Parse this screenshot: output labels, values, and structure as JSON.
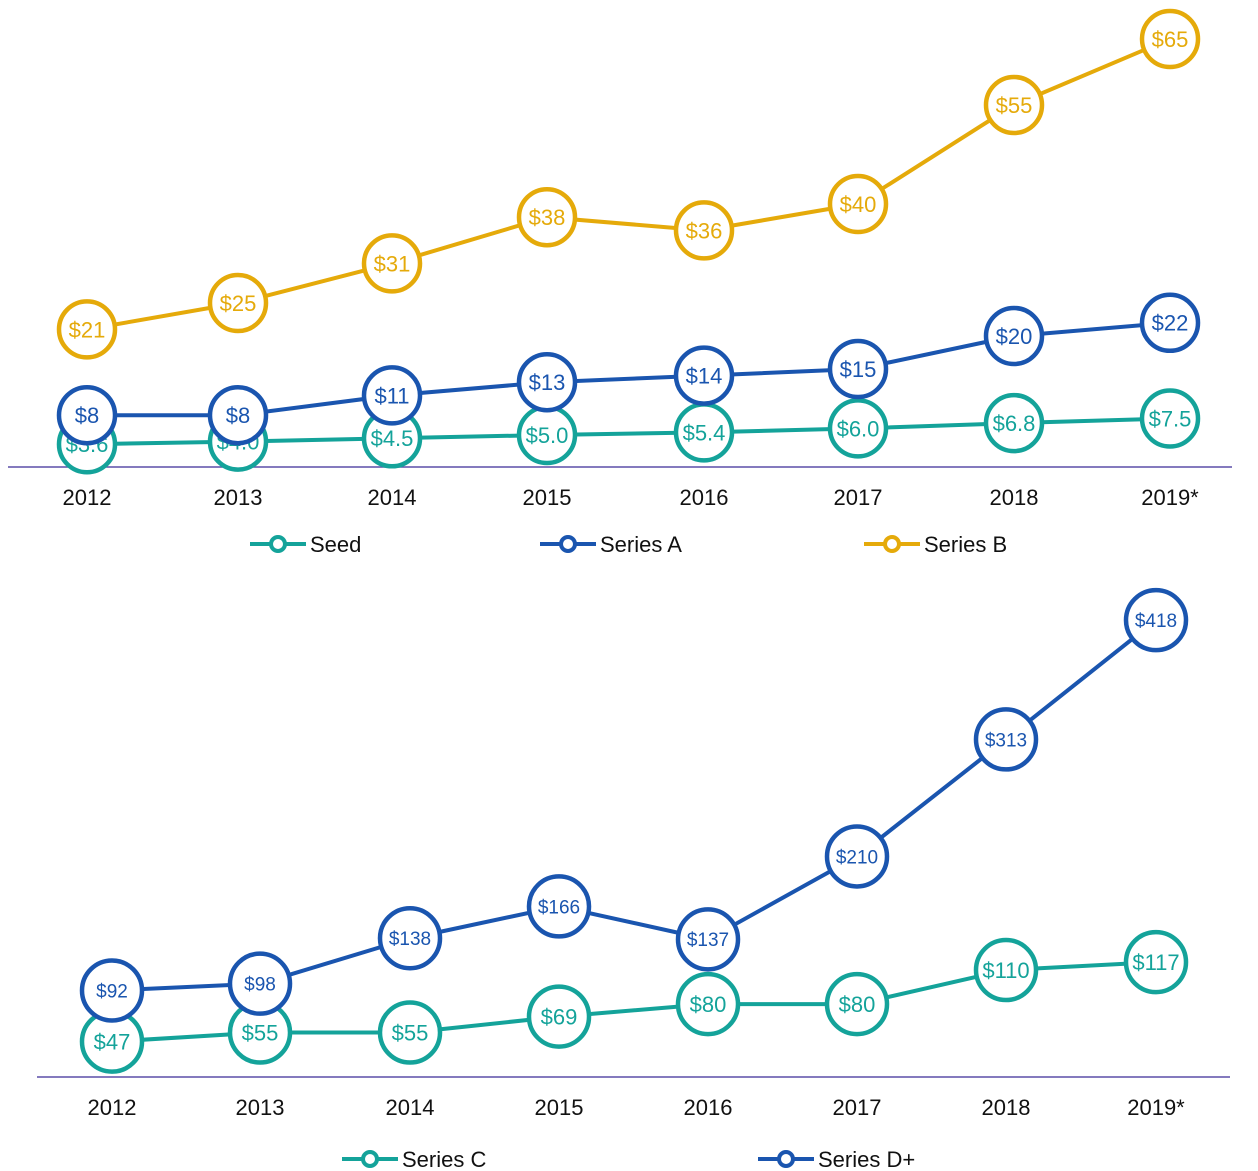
{
  "chart_data": [
    {
      "type": "line",
      "categories": [
        "2012",
        "2013",
        "2014",
        "2015",
        "2016",
        "2017",
        "2018",
        "2019*"
      ],
      "series": [
        {
          "name": "Seed",
          "color": "#14A39A",
          "values": [
            3.6,
            4.0,
            4.5,
            5.0,
            5.4,
            6.0,
            6.8,
            7.5
          ],
          "labels": [
            "$3.6",
            "$4.0",
            "$4.5",
            "$5.0",
            "$5.4",
            "$6.0",
            "$6.8",
            "$7.5"
          ]
        },
        {
          "name": "Series A",
          "color": "#1A55AF",
          "values": [
            8,
            8,
            11,
            13,
            14,
            15,
            20,
            22
          ],
          "labels": [
            "$8",
            "$8",
            "$11",
            "$13",
            "$14",
            "$15",
            "$20",
            "$22"
          ]
        },
        {
          "name": "Series B",
          "color": "#E5AA0A",
          "values": [
            21,
            25,
            31,
            38,
            36,
            40,
            55,
            65
          ],
          "labels": [
            "$21",
            "$25",
            "$31",
            "$38",
            "$36",
            "$40",
            "$55",
            "$65"
          ]
        }
      ],
      "axis_color": "#5B4FA8",
      "gridlines": false,
      "legend_position": "bottom"
    },
    {
      "type": "line",
      "categories": [
        "2012",
        "2013",
        "2014",
        "2015",
        "2016",
        "2017",
        "2018",
        "2019*"
      ],
      "series": [
        {
          "name": "Series C",
          "color": "#14A39A",
          "values": [
            47,
            55,
            55,
            69,
            80,
            80,
            110,
            117
          ],
          "labels": [
            "$47",
            "$55",
            "$55",
            "$69",
            "$80",
            "$80",
            "$110",
            "$117"
          ]
        },
        {
          "name": "Series D+",
          "color": "#1A55AF",
          "values": [
            92,
            98,
            138,
            166,
            137,
            210,
            313,
            418
          ],
          "labels": [
            "$92",
            "$98",
            "$138",
            "$166",
            "$137",
            "$210",
            "$313",
            "$418"
          ]
        }
      ],
      "axis_color": "#5B4FA8",
      "gridlines": false,
      "legend_position": "bottom"
    }
  ]
}
